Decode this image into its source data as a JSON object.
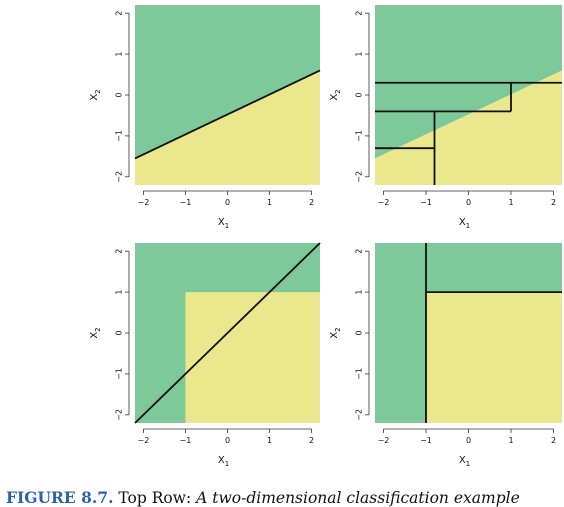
{
  "colors": {
    "green": "#7ec99a",
    "yellow": "#ebe78c",
    "line": "#111111"
  },
  "caption": {
    "label": "FIGURE 8.7.",
    "lead": " Top Row: ",
    "body": "A two-dimensional classification example"
  },
  "chart_data": [
    {
      "type": "area",
      "panel": "top-left",
      "xlabel": "X1",
      "ylabel": "X2",
      "xlim": [
        -2.2,
        2.2
      ],
      "ylim": [
        -2.2,
        2.2
      ],
      "xticks": [
        "-2",
        "-1",
        "0",
        "1",
        "2"
      ],
      "yticks": [
        "-2",
        "-1",
        "0",
        "1",
        "2"
      ],
      "grid": false,
      "regions": [
        {
          "class": "green",
          "polygon": [
            [
              -2.2,
              -1.55
            ],
            [
              2.2,
              0.6
            ],
            [
              2.2,
              2.2
            ],
            [
              -2.2,
              2.2
            ]
          ]
        },
        {
          "class": "yellow",
          "polygon": [
            [
              -2.2,
              -2.2
            ],
            [
              2.2,
              -2.2
            ],
            [
              2.2,
              0.6
            ],
            [
              -2.2,
              -1.55
            ]
          ]
        }
      ],
      "lines": [
        [
          [
            -2.2,
            -1.55
          ],
          [
            2.2,
            0.6
          ]
        ]
      ]
    },
    {
      "type": "area",
      "panel": "top-right",
      "xlabel": "X1",
      "ylabel": "X2",
      "xlim": [
        -2.2,
        2.2
      ],
      "ylim": [
        -2.2,
        2.2
      ],
      "xticks": [
        "-2",
        "-1",
        "0",
        "1",
        "2"
      ],
      "yticks": [
        "-2",
        "-1",
        "0",
        "1",
        "2"
      ],
      "grid": false,
      "regions": [
        {
          "class": "green",
          "polygon": [
            [
              -2.2,
              -1.55
            ],
            [
              2.2,
              0.6
            ],
            [
              2.2,
              2.2
            ],
            [
              -2.2,
              2.2
            ]
          ]
        },
        {
          "class": "yellow",
          "polygon": [
            [
              -2.2,
              -2.2
            ],
            [
              2.2,
              -2.2
            ],
            [
              2.2,
              0.6
            ],
            [
              -2.2,
              -1.55
            ]
          ]
        }
      ],
      "lines": [
        [
          [
            -2.2,
            0.3
          ],
          [
            2.2,
            0.3
          ]
        ],
        [
          [
            -2.2,
            -0.4
          ],
          [
            1.0,
            -0.4
          ]
        ],
        [
          [
            1.0,
            -0.4
          ],
          [
            1.0,
            0.3
          ]
        ],
        [
          [
            -0.8,
            -2.2
          ],
          [
            -0.8,
            -0.4
          ]
        ],
        [
          [
            -2.2,
            -1.3
          ],
          [
            -0.8,
            -1.3
          ]
        ]
      ]
    },
    {
      "type": "area",
      "panel": "bottom-left",
      "xlabel": "X1",
      "ylabel": "X2",
      "xlim": [
        -2.2,
        2.2
      ],
      "ylim": [
        -2.2,
        2.2
      ],
      "xticks": [
        "-2",
        "-1",
        "0",
        "1",
        "2"
      ],
      "yticks": [
        "-2",
        "-1",
        "0",
        "1",
        "2"
      ],
      "grid": false,
      "regions": [
        {
          "class": "green",
          "polygon": [
            [
              -2.2,
              -2.2
            ],
            [
              2.2,
              -2.2
            ],
            [
              2.2,
              2.2
            ],
            [
              -2.2,
              2.2
            ]
          ]
        },
        {
          "class": "yellow",
          "polygon": [
            [
              -1.0,
              -2.2
            ],
            [
              2.2,
              -2.2
            ],
            [
              2.2,
              1.0
            ],
            [
              -1.0,
              1.0
            ]
          ]
        }
      ],
      "lines": [
        [
          [
            -2.2,
            -2.2
          ],
          [
            2.2,
            2.2
          ]
        ]
      ]
    },
    {
      "type": "area",
      "panel": "bottom-right",
      "xlabel": "X1",
      "ylabel": "X2",
      "xlim": [
        -2.2,
        2.2
      ],
      "ylim": [
        -2.2,
        2.2
      ],
      "xticks": [
        "-2",
        "-1",
        "0",
        "1",
        "2"
      ],
      "yticks": [
        "-2",
        "-1",
        "0",
        "1",
        "2"
      ],
      "grid": false,
      "regions": [
        {
          "class": "green",
          "polygon": [
            [
              -2.2,
              -2.2
            ],
            [
              2.2,
              -2.2
            ],
            [
              2.2,
              2.2
            ],
            [
              -2.2,
              2.2
            ]
          ]
        },
        {
          "class": "yellow",
          "polygon": [
            [
              -1.0,
              -2.2
            ],
            [
              2.2,
              -2.2
            ],
            [
              2.2,
              1.0
            ],
            [
              -1.0,
              1.0
            ]
          ]
        }
      ],
      "lines": [
        [
          [
            -1.0,
            -2.2
          ],
          [
            -1.0,
            2.2
          ]
        ],
        [
          [
            -1.0,
            1.0
          ],
          [
            2.2,
            1.0
          ]
        ]
      ]
    }
  ]
}
